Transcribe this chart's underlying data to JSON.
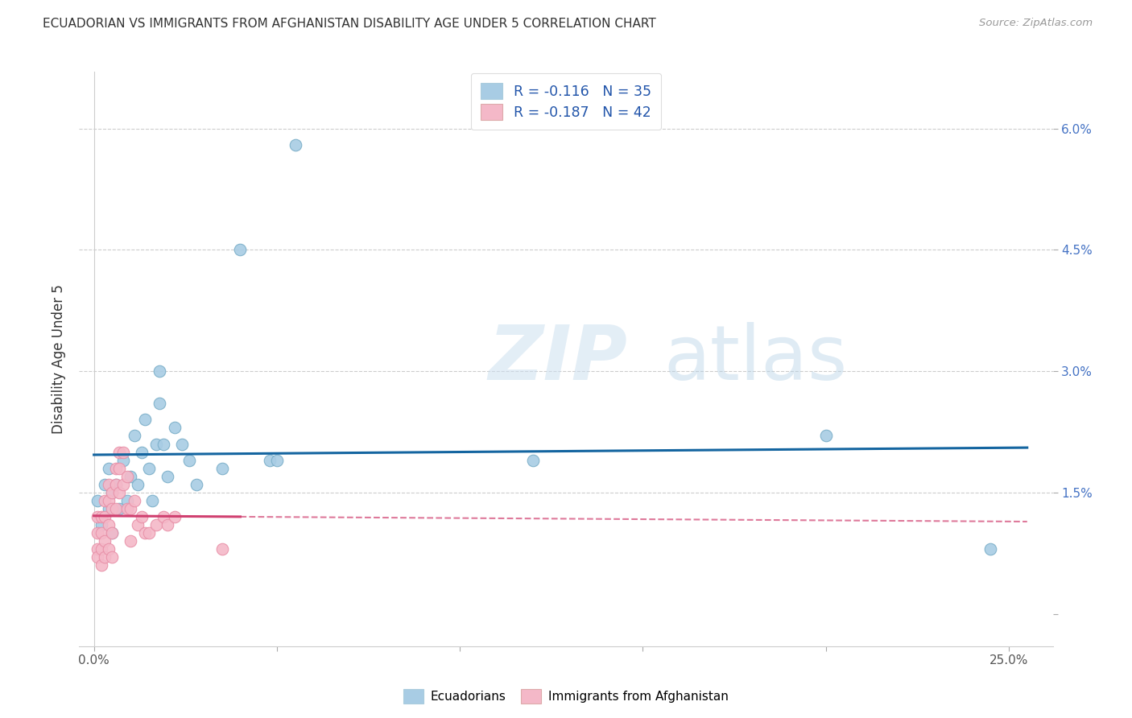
{
  "title": "ECUADORIAN VS IMMIGRANTS FROM AFGHANISTAN DISABILITY AGE UNDER 5 CORRELATION CHART",
  "source": "Source: ZipAtlas.com",
  "ylabel": "Disability Age Under 5",
  "x_ticks": [
    0.0,
    0.05,
    0.1,
    0.15,
    0.2,
    0.25
  ],
  "x_tick_labels": [
    "0.0%",
    "",
    "",
    "",
    "",
    "25.0%"
  ],
  "y_ticks": [
    0.0,
    0.015,
    0.03,
    0.045,
    0.06
  ],
  "y_tick_labels": [
    "",
    "1.5%",
    "3.0%",
    "4.5%",
    "6.0%"
  ],
  "xlim": [
    -0.004,
    0.262
  ],
  "ylim": [
    -0.004,
    0.067
  ],
  "legend_label_blue": "Ecuadorians",
  "legend_label_pink": "Immigrants from Afghanistan",
  "blue_color": "#a8cce4",
  "pink_color": "#f4b8c8",
  "blue_marker_edge": "#7aaec8",
  "pink_marker_edge": "#e890a8",
  "blue_line_color": "#1465a0",
  "pink_line_color": "#d04070",
  "watermark_zip": "ZIP",
  "watermark_atlas": "atlas",
  "blue_x": [
    0.001,
    0.002,
    0.003,
    0.004,
    0.004,
    0.005,
    0.005,
    0.006,
    0.007,
    0.008,
    0.009,
    0.01,
    0.011,
    0.012,
    0.013,
    0.014,
    0.015,
    0.016,
    0.017,
    0.018,
    0.018,
    0.019,
    0.02,
    0.022,
    0.024,
    0.026,
    0.028,
    0.035,
    0.04,
    0.048,
    0.05,
    0.055,
    0.12,
    0.2,
    0.245
  ],
  "blue_y": [
    0.014,
    0.011,
    0.016,
    0.013,
    0.018,
    0.015,
    0.01,
    0.016,
    0.013,
    0.019,
    0.014,
    0.017,
    0.022,
    0.016,
    0.02,
    0.024,
    0.018,
    0.014,
    0.021,
    0.03,
    0.026,
    0.021,
    0.017,
    0.023,
    0.021,
    0.019,
    0.016,
    0.018,
    0.045,
    0.019,
    0.019,
    0.058,
    0.019,
    0.022,
    0.008
  ],
  "pink_x": [
    0.001,
    0.001,
    0.001,
    0.001,
    0.002,
    0.002,
    0.002,
    0.002,
    0.003,
    0.003,
    0.003,
    0.003,
    0.004,
    0.004,
    0.004,
    0.004,
    0.005,
    0.005,
    0.005,
    0.005,
    0.006,
    0.006,
    0.006,
    0.007,
    0.007,
    0.007,
    0.008,
    0.008,
    0.009,
    0.009,
    0.01,
    0.01,
    0.011,
    0.012,
    0.013,
    0.014,
    0.015,
    0.017,
    0.019,
    0.02,
    0.022,
    0.035
  ],
  "pink_y": [
    0.008,
    0.01,
    0.012,
    0.007,
    0.012,
    0.01,
    0.008,
    0.006,
    0.014,
    0.012,
    0.009,
    0.007,
    0.016,
    0.014,
    0.011,
    0.008,
    0.015,
    0.013,
    0.01,
    0.007,
    0.018,
    0.016,
    0.013,
    0.02,
    0.018,
    0.015,
    0.02,
    0.016,
    0.017,
    0.013,
    0.013,
    0.009,
    0.014,
    0.011,
    0.012,
    0.01,
    0.01,
    0.011,
    0.012,
    0.011,
    0.012,
    0.008
  ]
}
